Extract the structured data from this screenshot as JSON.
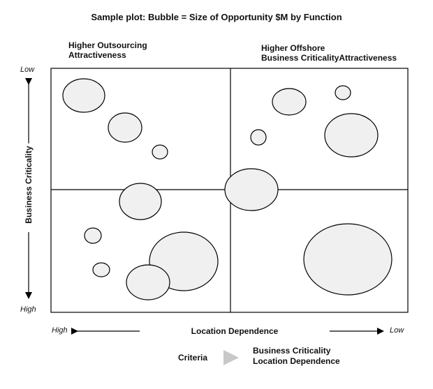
{
  "title": "Sample plot: Bubble = Size of Opportunity $M by Function",
  "quadrants": {
    "top_left": [
      "Higher Outsourcing",
      "Attractiveness"
    ],
    "top_right": [
      "Higher Offshore",
      "Business CriticalityAttractiveness"
    ]
  },
  "y_axis": {
    "label": "Business Criticality",
    "top_end": "Low",
    "bottom_end": "High"
  },
  "x_axis": {
    "label": "Location Dependence",
    "left_end": "High",
    "right_end": "Low"
  },
  "legend": {
    "label": "Criteria",
    "items": [
      "Business Criticality",
      "Location Dependence"
    ]
  },
  "colors": {
    "bubble_fill": "#f0f0f0",
    "stroke": "#000000",
    "arrow_gray": "#c8c8c8"
  }
}
